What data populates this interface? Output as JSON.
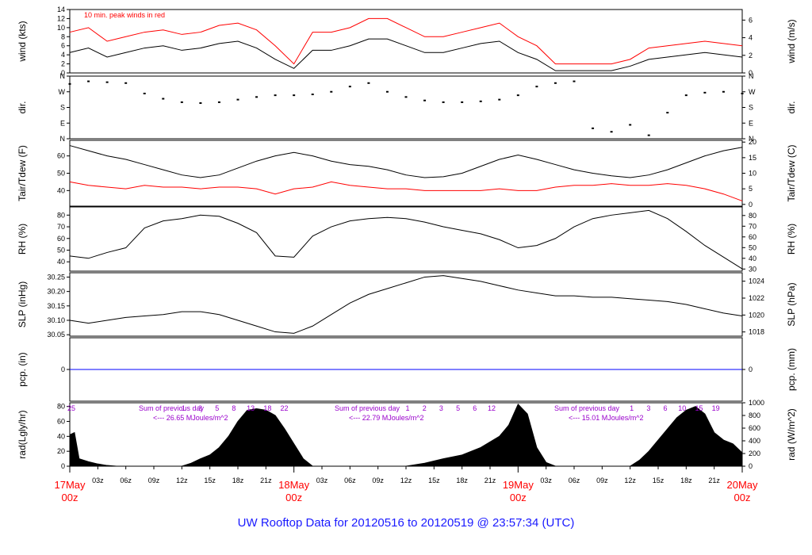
{
  "title": "UW Rooftop Data for 20120516  to  20120519 @ 23:57:34  (UTC)",
  "colors": {
    "main": "#000000",
    "red": "#ff0000",
    "blue": "#0000ff",
    "purple": "#9900cc",
    "title": "#1a1aff"
  },
  "chart_data": [
    {
      "id": "wind",
      "type": "line",
      "ylabel_left": "wind (kts)",
      "ylabel_right": "wind (m/s)",
      "left_ticks": [
        "0",
        "2",
        "4",
        "6",
        "8",
        "10",
        "12",
        "14"
      ],
      "ylim": [
        0,
        14
      ],
      "right_ticks": [
        "0",
        "2",
        "4",
        "6"
      ],
      "right_ylim": [
        0,
        7.2
      ],
      "annotation": "10 min. peak winds in red",
      "series": [
        {
          "name": "wind",
          "color": "#000000",
          "x": [
            0,
            2,
            4,
            6,
            8,
            10,
            12,
            14,
            16,
            18,
            20,
            22,
            24,
            26,
            28,
            30,
            32,
            34,
            36,
            38,
            40,
            42,
            44,
            46,
            48,
            50,
            52,
            54,
            56,
            58,
            60,
            62,
            64,
            66,
            68,
            70,
            72
          ],
          "y": [
            4.5,
            5.5,
            3.5,
            4.5,
            5.5,
            6,
            5,
            5.5,
            6.5,
            7,
            5.5,
            3,
            1,
            5,
            5,
            6,
            7.5,
            7.5,
            6,
            4.5,
            4.5,
            5.5,
            6.5,
            7,
            4.5,
            3,
            0.5,
            0.5,
            0.5,
            0.5,
            1.5,
            3,
            3.5,
            4,
            4.5,
            4,
            3.5
          ]
        },
        {
          "name": "10 min. peak winds",
          "color": "#ff0000",
          "x": [
            0,
            2,
            4,
            6,
            8,
            10,
            12,
            14,
            16,
            18,
            20,
            22,
            24,
            26,
            28,
            30,
            32,
            34,
            36,
            38,
            40,
            42,
            44,
            46,
            48,
            50,
            52,
            54,
            56,
            58,
            60,
            62,
            64,
            66,
            68,
            70,
            72
          ],
          "y": [
            9,
            10,
            7,
            8,
            9,
            9.5,
            8.5,
            9,
            10.5,
            11,
            9.5,
            6,
            2,
            9,
            9,
            10,
            12,
            12,
            10,
            8,
            8,
            9,
            10,
            11,
            8,
            6,
            2,
            2,
            2,
            2,
            3,
            5.5,
            6,
            6.5,
            7,
            6.5,
            6
          ]
        }
      ]
    },
    {
      "id": "dir",
      "type": "scatter",
      "ylabel_left": "dir.",
      "ylabel_right": "dir.",
      "left_ticks": [
        "N",
        "E",
        "S",
        "W",
        "N"
      ],
      "ylim": [
        0,
        360
      ],
      "right_ticks": [
        "N",
        "E",
        "S",
        "W",
        "N"
      ],
      "series": [
        {
          "name": "direction",
          "color": "#000000",
          "x": [
            0,
            2,
            4,
            6,
            8,
            10,
            12,
            14,
            16,
            18,
            20,
            22,
            24,
            26,
            28,
            30,
            32,
            34,
            36,
            38,
            40,
            42,
            44,
            46,
            48,
            50,
            52,
            54,
            56,
            58,
            60,
            62,
            64,
            66,
            68,
            70,
            72
          ],
          "y": [
            315,
            330,
            325,
            320,
            260,
            230,
            210,
            205,
            210,
            225,
            240,
            250,
            250,
            255,
            270,
            300,
            320,
            270,
            240,
            220,
            210,
            210,
            215,
            225,
            250,
            300,
            320,
            330,
            60,
            40,
            80,
            20,
            150,
            250,
            265,
            270,
            260
          ]
        }
      ]
    },
    {
      "id": "temp",
      "type": "line",
      "ylabel_left": "Tair/Tdew (F)",
      "ylabel_right": "Tair/Tdew (C)",
      "left_ticks": [
        "40",
        "50",
        "60"
      ],
      "ylim": [
        31,
        69
      ],
      "right_ticks": [
        "0",
        "5",
        "10",
        "15",
        "20"
      ],
      "right_ylim": [
        -0.56,
        20.56
      ],
      "series": [
        {
          "name": "Tair",
          "color": "#000000",
          "x": [
            0,
            2,
            4,
            6,
            8,
            10,
            12,
            14,
            16,
            18,
            20,
            22,
            24,
            26,
            28,
            30,
            32,
            34,
            36,
            38,
            40,
            42,
            44,
            46,
            48,
            50,
            52,
            54,
            56,
            58,
            60,
            62,
            64,
            66,
            68,
            70,
            72
          ],
          "y": [
            66,
            63,
            60,
            58,
            55,
            52,
            49,
            47.5,
            49,
            53,
            57,
            60,
            62,
            60,
            57,
            55,
            54,
            52,
            49,
            47.5,
            48,
            50,
            54,
            58,
            60.5,
            58,
            55,
            52,
            50,
            48.5,
            47.5,
            49,
            52,
            56,
            60,
            63,
            65
          ]
        },
        {
          "name": "Tdew",
          "color": "#ff0000",
          "x": [
            0,
            2,
            4,
            6,
            8,
            10,
            12,
            14,
            16,
            18,
            20,
            22,
            24,
            26,
            28,
            30,
            32,
            34,
            36,
            38,
            40,
            42,
            44,
            46,
            48,
            50,
            52,
            54,
            56,
            58,
            60,
            62,
            64,
            66,
            68,
            70,
            72
          ],
          "y": [
            45,
            43,
            42,
            41,
            43,
            42,
            42,
            41,
            42,
            42,
            41,
            38,
            41,
            42,
            45,
            43,
            42,
            41,
            41,
            40,
            40,
            40,
            40,
            41,
            40,
            40,
            42,
            43,
            43,
            44,
            43,
            43,
            44,
            43,
            41,
            38,
            34
          ]
        }
      ]
    },
    {
      "id": "rh",
      "type": "line",
      "ylabel_left": "RH (%)",
      "ylabel_right": "RH (%)",
      "left_ticks": [
        "40",
        "50",
        "60",
        "70",
        "80"
      ],
      "ylim": [
        32,
        87
      ],
      "right_ticks": [
        "30",
        "40",
        "50",
        "60",
        "70",
        "80"
      ],
      "right_ylim": [
        28,
        88
      ],
      "series": [
        {
          "name": "RH",
          "color": "#000000",
          "x": [
            0,
            2,
            4,
            6,
            8,
            10,
            12,
            14,
            16,
            18,
            20,
            22,
            24,
            26,
            28,
            30,
            32,
            34,
            36,
            38,
            40,
            42,
            44,
            46,
            48,
            50,
            52,
            54,
            56,
            58,
            60,
            62,
            64,
            66,
            68,
            70,
            72
          ],
          "y": [
            45,
            43,
            48,
            52,
            69,
            75,
            77,
            80,
            79,
            73,
            65,
            45,
            44,
            62,
            70,
            75,
            77,
            78,
            77,
            74,
            70,
            67,
            64,
            59,
            52,
            54,
            60,
            70,
            77,
            80,
            82,
            84,
            77,
            66,
            54,
            44,
            34
          ]
        }
      ]
    },
    {
      "id": "slp",
      "type": "line",
      "ylabel_left": "SLP (inHg)",
      "ylabel_right": "SLP (hPa)",
      "left_ticks": [
        "30.05",
        "30.10",
        "30.15",
        "30.20",
        "30.25"
      ],
      "ylim": [
        30.045,
        30.265
      ],
      "right_ticks": [
        "1018",
        "1020",
        "1022",
        "1024"
      ],
      "right_ylim": [
        1017.5,
        1025.0
      ],
      "series": [
        {
          "name": "SLP",
          "color": "#000000",
          "x": [
            0,
            2,
            4,
            6,
            8,
            10,
            12,
            14,
            16,
            18,
            20,
            22,
            24,
            26,
            28,
            30,
            32,
            34,
            36,
            38,
            40,
            42,
            44,
            46,
            48,
            50,
            52,
            54,
            56,
            58,
            60,
            62,
            64,
            66,
            68,
            70,
            72
          ],
          "y": [
            30.1,
            30.09,
            30.1,
            30.11,
            30.115,
            30.12,
            30.13,
            30.13,
            30.12,
            30.1,
            30.08,
            30.06,
            30.055,
            30.08,
            30.12,
            30.16,
            30.19,
            30.21,
            30.23,
            30.25,
            30.255,
            30.245,
            30.235,
            30.22,
            30.205,
            30.195,
            30.185,
            30.185,
            30.18,
            30.18,
            30.175,
            30.17,
            30.165,
            30.155,
            30.14,
            30.125,
            30.115
          ]
        }
      ]
    },
    {
      "id": "pcp",
      "type": "line",
      "ylabel_left": "pcp. (in)",
      "ylabel_right": "pcp. (mm)",
      "left_ticks": [
        "0"
      ],
      "ylim": [
        -1,
        1
      ],
      "right_ticks": [
        "0"
      ],
      "series": [
        {
          "name": "precip",
          "color": "#0000ff",
          "x": [
            0,
            72
          ],
          "y": [
            0,
            0
          ]
        }
      ]
    },
    {
      "id": "rad",
      "type": "area",
      "ylabel_left": "rad(Lgly/hr)",
      "ylabel_right": "rad (W/m^2)",
      "left_ticks": [
        "0",
        "20",
        "40",
        "60",
        "80"
      ],
      "ylim": [
        0,
        85
      ],
      "right_ticks": [
        "0",
        "200",
        "400",
        "600",
        "800",
        "1000"
      ],
      "right_ylim": [
        0,
        1000
      ],
      "series": [
        {
          "name": "radiation",
          "color": "#000000",
          "x": [
            0,
            0.5,
            1,
            1.5,
            2,
            3,
            4,
            5,
            12,
            13,
            14,
            15,
            16,
            17,
            18,
            19,
            20,
            21,
            22,
            23,
            24,
            25,
            26,
            36,
            38,
            40,
            42,
            44,
            46,
            47,
            48,
            49,
            50,
            51,
            52,
            60,
            61,
            62,
            63,
            64,
            65,
            66,
            67,
            68,
            69,
            70,
            71,
            72
          ],
          "y": [
            42,
            45,
            10,
            8,
            6,
            3,
            1,
            0,
            0,
            4,
            10,
            15,
            25,
            40,
            60,
            75,
            77,
            75,
            68,
            50,
            30,
            10,
            0,
            0,
            4,
            10,
            15,
            25,
            40,
            55,
            83,
            70,
            25,
            5,
            0,
            0,
            8,
            20,
            35,
            50,
            65,
            75,
            80,
            70,
            45,
            35,
            30,
            18
          ]
        }
      ],
      "annotations": [
        {
          "text": "Sum of previous day",
          "value": "<--- 26.65 MJoules/m^2"
        },
        {
          "text": "Sum of previous day",
          "value": "<--- 22.79 MJoules/m^2"
        },
        {
          "text": "Sum of previous day",
          "value": "<--- 15.01 MJoules/m^2"
        }
      ],
      "hour_marks": [
        [
          "25"
        ],
        [
          "1",
          "3",
          "5",
          "8",
          "13",
          "18",
          "22"
        ],
        [
          "1",
          "2",
          "3",
          "5",
          "6",
          "12"
        ],
        [
          "1",
          "3",
          "6",
          "10",
          "15",
          "19"
        ]
      ]
    }
  ],
  "x_axis": {
    "xlim": [
      0,
      72
    ],
    "hour_ticks": [
      "03z",
      "06z",
      "09z",
      "12z",
      "15z",
      "18z",
      "21z",
      "03z",
      "06z",
      "09z",
      "12z",
      "15z",
      "18z",
      "21z",
      "03z",
      "06z",
      "09z",
      "12z",
      "15z",
      "18z",
      "21z"
    ],
    "date_labels": [
      {
        "date": "17May",
        "hour": "00z"
      },
      {
        "date": "18May",
        "hour": "00z"
      },
      {
        "date": "19May",
        "hour": "00z"
      },
      {
        "date": "20May",
        "hour": "00z"
      }
    ]
  }
}
